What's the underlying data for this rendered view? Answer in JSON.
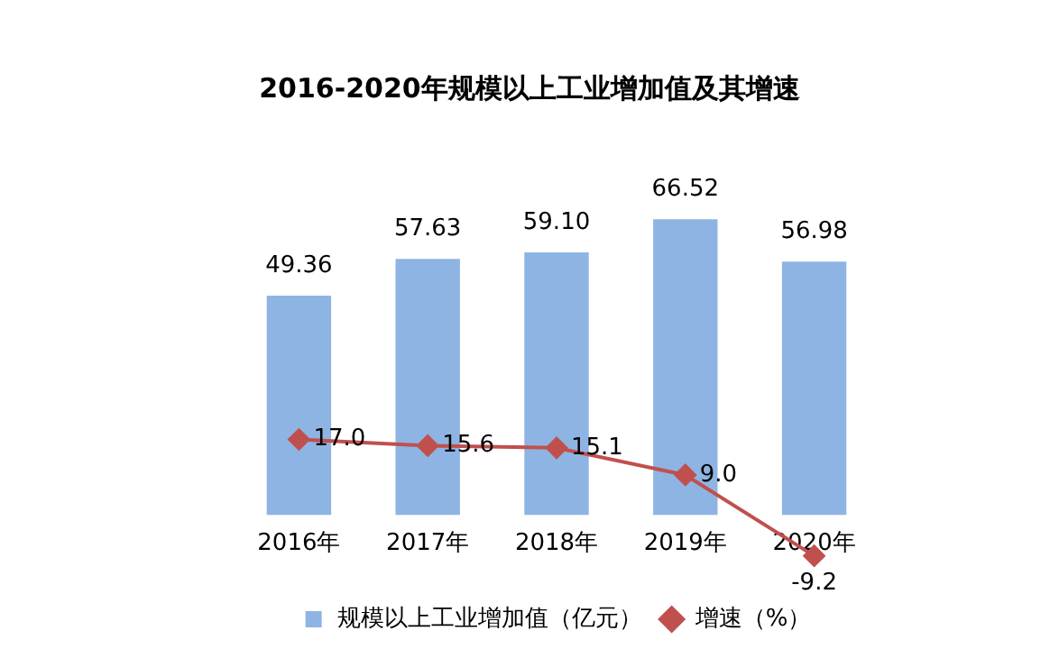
{
  "chart_data": {
    "type": "bar",
    "title": "2016-2020年规模以上工业增加值及其增速",
    "categories": [
      "2016年",
      "2017年",
      "2018年",
      "2019年",
      "2020年"
    ],
    "series": [
      {
        "name": "规模以上工业增加值（亿元）",
        "color": "#8eb4e3",
        "values": [
          49.36,
          57.63,
          59.1,
          66.52,
          56.98
        ],
        "value_labels": [
          "49.36",
          "57.63",
          "59.10",
          "66.52",
          "56.98"
        ]
      },
      {
        "name": "增速（%）",
        "type": "line",
        "color": "#c0504d",
        "values": [
          17.0,
          15.6,
          15.1,
          9.0,
          -9.2
        ],
        "value_labels": [
          "17.0",
          "15.6",
          "15.1",
          "9.0",
          "-9.2"
        ]
      }
    ],
    "data_labels": true,
    "marker": "diamond",
    "legend": "bottom",
    "grid": false,
    "tick_labels": "x"
  }
}
